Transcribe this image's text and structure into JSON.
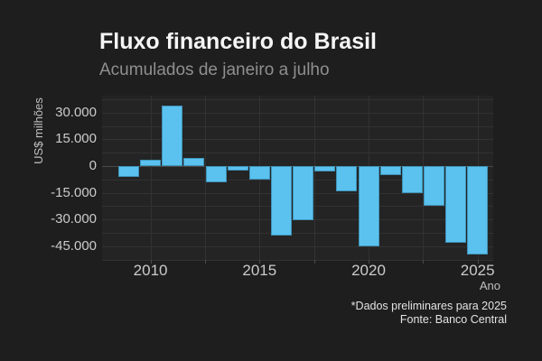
{
  "header": {
    "title": "Fluxo financeiro do Brasil",
    "subtitle": "Acumulados de janeiro a julho"
  },
  "footer": {
    "note": "*Dados preliminares para 2025",
    "source": "Fonte: Banco Central"
  },
  "chart_data": {
    "type": "bar",
    "title": "Fluxo financeiro do Brasil",
    "subtitle": "Acumulados de janeiro a julho",
    "xlabel": "Ano",
    "ylabel": "US$ milhões",
    "unit": "US$ milhões",
    "categories": [
      2009,
      2010,
      2011,
      2012,
      2013,
      2014,
      2015,
      2016,
      2017,
      2018,
      2019,
      2020,
      2021,
      2022,
      2023,
      2024,
      2025
    ],
    "values": [
      -6200,
      3600,
      33800,
      4600,
      -9000,
      -2700,
      -7500,
      -38900,
      -30600,
      -2800,
      -14100,
      -45300,
      -4800,
      -15300,
      -22500,
      -43200,
      -49800
    ],
    "ylim": [
      -52500,
      39500
    ],
    "ygrid_step": 7500,
    "yticks": [
      {
        "value": 30000,
        "label": "30.000"
      },
      {
        "value": 15000,
        "label": "15.000"
      },
      {
        "value": 0,
        "label": "0"
      },
      {
        "value": -15000,
        "label": "-15.000"
      },
      {
        "value": -30000,
        "label": "-30.000"
      },
      {
        "value": -45000,
        "label": "-45.000"
      }
    ],
    "xgridlines": [
      2010,
      2012.5,
      2015,
      2017.5,
      2020,
      2022.5,
      2025
    ],
    "xticks": [
      {
        "value": 2010,
        "label": "2010"
      },
      {
        "value": 2015,
        "label": "2015"
      },
      {
        "value": 2020,
        "label": "2020"
      },
      {
        "value": 2025,
        "label": "2025"
      }
    ],
    "grid": true,
    "legend": "none",
    "colors": {
      "page_bg": "#1e1e1e",
      "plot_bg": "#242424",
      "gridline": "#323232",
      "zero_line": "#484848",
      "tick_mark": "#4a4a4a",
      "bar": "#5bc2ef",
      "bar_border": "#3f93b8",
      "title": "#f5f5f5",
      "subtitle": "#8f8f8f",
      "tick_label": "#cbcbcb",
      "axis_title": "#c0c0c0",
      "footnote": "#e3e3e3"
    }
  }
}
